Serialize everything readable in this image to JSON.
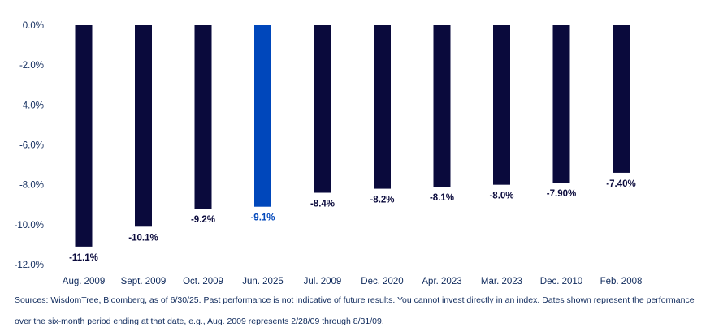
{
  "chart_data": {
    "type": "bar",
    "categories": [
      "Aug. 2009",
      "Sept. 2009",
      "Oct. 2009",
      "Jun. 2025",
      "Jul. 2009",
      "Dec. 2020",
      "Apr. 2023",
      "Mar. 2023",
      "Dec. 2010",
      "Feb. 2008"
    ],
    "values": [
      -11.1,
      -10.1,
      -9.2,
      -9.1,
      -8.4,
      -8.2,
      -8.1,
      -8.0,
      -7.9,
      -7.4
    ],
    "data_labels": [
      "-11.1%",
      "-10.1%",
      "-9.2%",
      "-9.1%",
      "-8.4%",
      "-8.2%",
      "-8.1%",
      "-8.0%",
      "-7.90%",
      "-7.40%"
    ],
    "highlight_index": 3,
    "ylim": [
      -12,
      0
    ],
    "yticks": [
      0,
      -2,
      -4,
      -6,
      -8,
      -10,
      -12
    ],
    "ytick_labels": [
      "0.0%",
      "-2.0%",
      "-4.0%",
      "-6.0%",
      "-8.0%",
      "-10.0%",
      "-12.0%"
    ],
    "grid": false,
    "colors": {
      "bar": "#0a0a3c",
      "highlight": "#0047bb",
      "label": "#0a0a3c",
      "highlight_label": "#0047bb",
      "axis_text": "#0f2a5c"
    }
  },
  "footnote": {
    "line1": "Sources: WisdomTree, Bloomberg, as of 6/30/25. Past performance is not indicative of future results. You cannot invest directly in an index. Dates shown represent the performance",
    "line2": "over the six-month period ending at that date, e.g., Aug. 2009 represents 2/28/09 through 8/31/09."
  }
}
